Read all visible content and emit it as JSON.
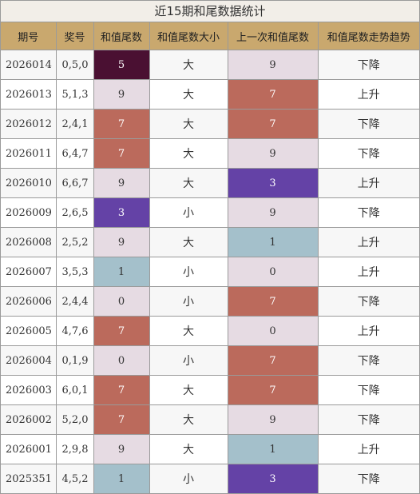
{
  "title": "近15期和尾数据统计",
  "headers": [
    "期号",
    "奖号",
    "和值尾数",
    "和值尾数大小",
    "上一次和值尾数",
    "和值尾数走势趋势"
  ],
  "colors": {
    "header_bg": "#c9a86e",
    "tail_0_9": "#e6dbe3",
    "tail_7": "#bb6a5c",
    "tail_1": "#a4c0cb",
    "tail_3": "#6442a6",
    "tail_5": "#4a1032"
  },
  "rows": [
    {
      "issue": "2026014",
      "numbers": "0,5,0",
      "tail": "5",
      "size": "大",
      "prev_tail": "9",
      "trend": "下降"
    },
    {
      "issue": "2026013",
      "numbers": "5,1,3",
      "tail": "9",
      "size": "大",
      "prev_tail": "7",
      "trend": "上升"
    },
    {
      "issue": "2026012",
      "numbers": "2,4,1",
      "tail": "7",
      "size": "大",
      "prev_tail": "7",
      "trend": "下降"
    },
    {
      "issue": "2026011",
      "numbers": "6,4,7",
      "tail": "7",
      "size": "大",
      "prev_tail": "9",
      "trend": "下降"
    },
    {
      "issue": "2026010",
      "numbers": "6,6,7",
      "tail": "9",
      "size": "大",
      "prev_tail": "3",
      "trend": "上升"
    },
    {
      "issue": "2026009",
      "numbers": "2,6,5",
      "tail": "3",
      "size": "小",
      "prev_tail": "9",
      "trend": "下降"
    },
    {
      "issue": "2026008",
      "numbers": "2,5,2",
      "tail": "9",
      "size": "大",
      "prev_tail": "1",
      "trend": "上升"
    },
    {
      "issue": "2026007",
      "numbers": "3,5,3",
      "tail": "1",
      "size": "小",
      "prev_tail": "0",
      "trend": "上升"
    },
    {
      "issue": "2026006",
      "numbers": "2,4,4",
      "tail": "0",
      "size": "小",
      "prev_tail": "7",
      "trend": "下降"
    },
    {
      "issue": "2026005",
      "numbers": "4,7,6",
      "tail": "7",
      "size": "大",
      "prev_tail": "0",
      "trend": "上升"
    },
    {
      "issue": "2026004",
      "numbers": "0,1,9",
      "tail": "0",
      "size": "小",
      "prev_tail": "7",
      "trend": "下降"
    },
    {
      "issue": "2026003",
      "numbers": "6,0,1",
      "tail": "7",
      "size": "大",
      "prev_tail": "7",
      "trend": "下降"
    },
    {
      "issue": "2026002",
      "numbers": "5,2,0",
      "tail": "7",
      "size": "大",
      "prev_tail": "9",
      "trend": "下降"
    },
    {
      "issue": "2026001",
      "numbers": "2,9,8",
      "tail": "9",
      "size": "大",
      "prev_tail": "1",
      "trend": "上升"
    },
    {
      "issue": "2025351",
      "numbers": "4,5,2",
      "tail": "1",
      "size": "小",
      "prev_tail": "3",
      "trend": "下降"
    }
  ]
}
